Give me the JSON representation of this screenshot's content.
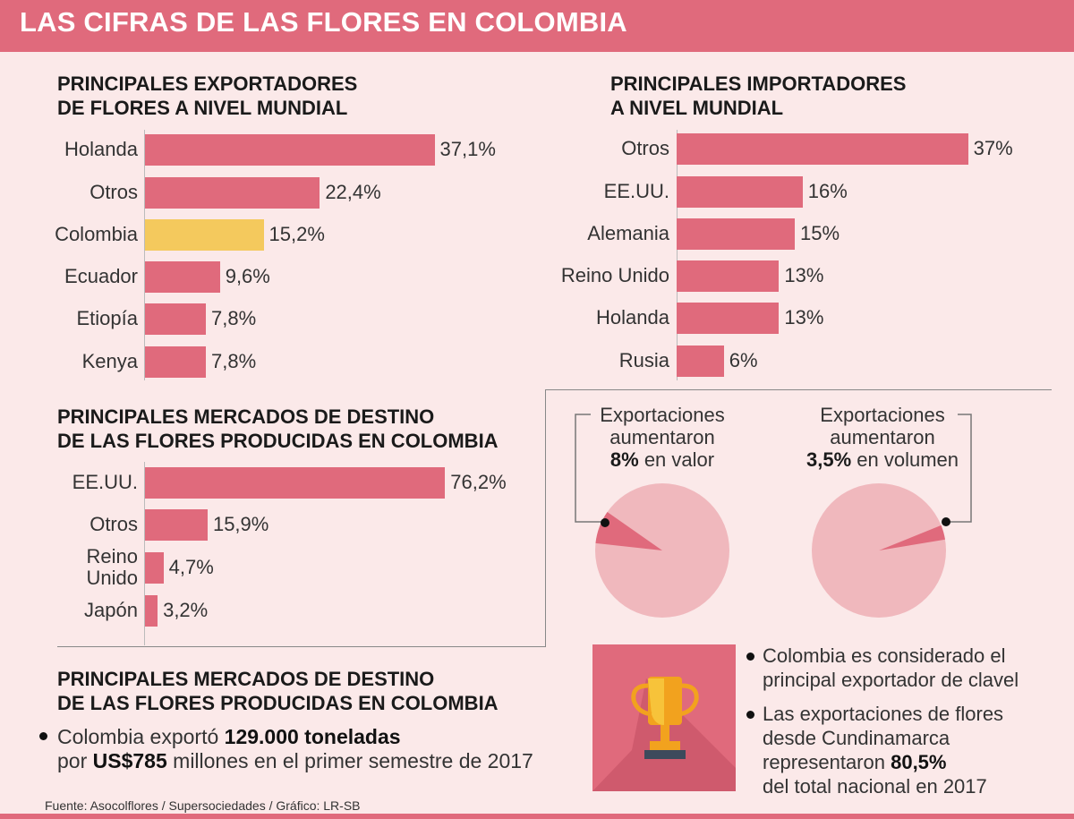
{
  "title": "LAS CIFRAS DE LAS FLORES EN COLOMBIA",
  "chart_data": [
    {
      "type": "bar",
      "orientation": "horizontal",
      "title": "PRINCIPALES EXPORTADORES\n DE FLORES A NIVEL MUNDIAL",
      "categories": [
        "Holanda",
        "Otros",
        "Colombia",
        "Ecuador",
        "Etiopía",
        "Kenya"
      ],
      "values": [
        37.1,
        22.4,
        15.2,
        9.6,
        7.8,
        7.8
      ],
      "value_labels": [
        "37,1%",
        "22,4%",
        "15,2%",
        "9,6%",
        "7,8%",
        "7,8%"
      ],
      "highlight": "Colombia",
      "colors": {
        "bar": "#e06a7c",
        "highlight": "#f4c95d"
      }
    },
    {
      "type": "bar",
      "orientation": "horizontal",
      "title": "PRINCIPALES IMPORTADORES\nA NIVEL MUNDIAL",
      "categories": [
        "Otros",
        "EE.UU.",
        "Alemania",
        "Reino Unido",
        "Holanda",
        "Rusia"
      ],
      "values": [
        37,
        16,
        15,
        13,
        13,
        6
      ],
      "value_labels": [
        "37%",
        "16%",
        "15%",
        "13%",
        "13%",
        "6%"
      ],
      "colors": {
        "bar": "#e06a7c"
      }
    },
    {
      "type": "bar",
      "orientation": "horizontal",
      "title": "PRINCIPALES MERCADOS DE DESTINO\nDE LAS FLORES PRODUCIDAS EN COLOMBIA",
      "categories": [
        "EE.UU.",
        "Otros",
        "Reino\nUnido",
        "Japón"
      ],
      "values": [
        76.2,
        15.9,
        4.7,
        3.2
      ],
      "value_labels": [
        "76,2%",
        "15,9%",
        "4,7%",
        "3,2%"
      ],
      "colors": {
        "bar": "#e06a7c"
      }
    },
    {
      "type": "pie",
      "caption_lines": [
        "Exportaciones",
        "aumentaron"
      ],
      "caption_bold": "8%",
      "caption_rest": " en valor",
      "slice_percent": 8,
      "colors": {
        "base": "#f0b8bd",
        "slice": "#e06a7c"
      }
    },
    {
      "type": "pie",
      "caption_lines": [
        "Exportaciones",
        "aumentaron"
      ],
      "caption_bold": "3,5%",
      "caption_rest": " en volumen",
      "slice_percent": 3.5,
      "colors": {
        "base": "#f0b8bd",
        "slice": "#e06a7c"
      }
    }
  ],
  "section4": {
    "title": "PRINCIPALES MERCADOS DE DESTINO\nDE LAS FLORES PRODUCIDAS EN COLOMBIA",
    "bullet": {
      "p1": "Colombia exportó ",
      "b1": "129.000 toneladas",
      "p2": "por ",
      "b2": "US$785",
      "p3": " millones en el primer semestre de 2017"
    }
  },
  "notes": {
    "item1": {
      "line1": "Colombia es considerado el",
      "line2": "principal exportador de clavel"
    },
    "item2": {
      "line1": "Las exportaciones de flores",
      "line2": "desde Cundinamarca",
      "line3": "representaron ",
      "bold": "80,5%",
      "line4": "del total nacional en 2017"
    }
  },
  "trophy_icon": "trophy-icon",
  "footer": "Fuente: Asocolflores / Supersociedades / Gráfico: LR-SB"
}
